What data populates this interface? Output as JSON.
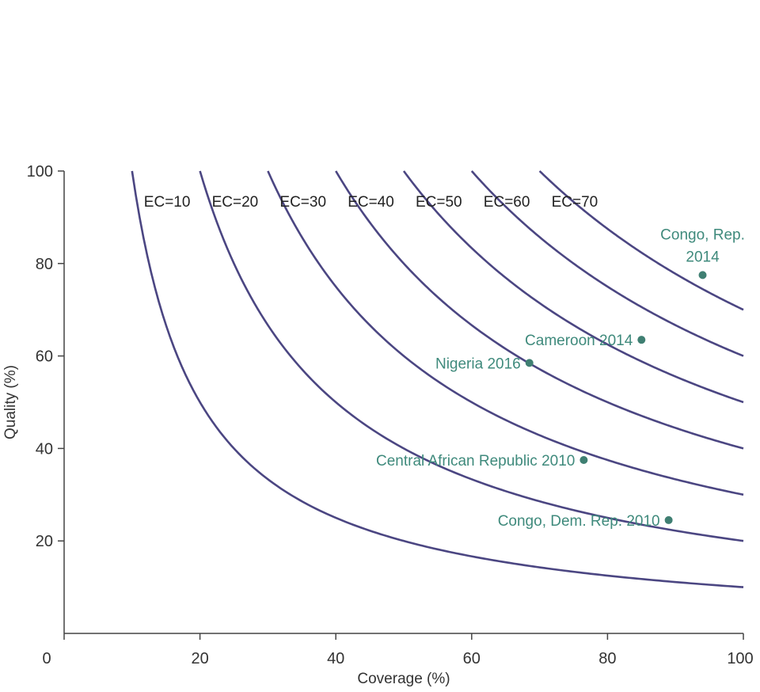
{
  "chart_data": {
    "type": "line",
    "xlabel": "Coverage (%)",
    "ylabel": "Quality (%)",
    "xlim": [
      0,
      100
    ],
    "ylim": [
      0,
      100
    ],
    "x_ticks": [
      "0",
      "20",
      "40",
      "60",
      "80",
      "100"
    ],
    "y_ticks": [
      "20",
      "40",
      "60",
      "80",
      "100"
    ],
    "grid": false,
    "curves": [
      {
        "name": "EC=10",
        "ec": 10
      },
      {
        "name": "EC=20",
        "ec": 20
      },
      {
        "name": "EC=30",
        "ec": 30
      },
      {
        "name": "EC=40",
        "ec": 40
      },
      {
        "name": "EC=50",
        "ec": 50
      },
      {
        "name": "EC=60",
        "ec": 60
      },
      {
        "name": "EC=70",
        "ec": 70
      }
    ],
    "points": [
      {
        "label": "Congo, Rep.",
        "label2": "2014",
        "x": 94,
        "y": 77.5
      },
      {
        "label": "Cameroon 2014",
        "x": 85,
        "y": 63.5
      },
      {
        "label": "Nigeria 2016",
        "x": 68.5,
        "y": 58.5
      },
      {
        "label": "Central African Republic 2010",
        "x": 76.5,
        "y": 37.5
      },
      {
        "label": "Congo, Dem. Rep. 2010",
        "x": 89,
        "y": 24.5
      }
    ]
  }
}
